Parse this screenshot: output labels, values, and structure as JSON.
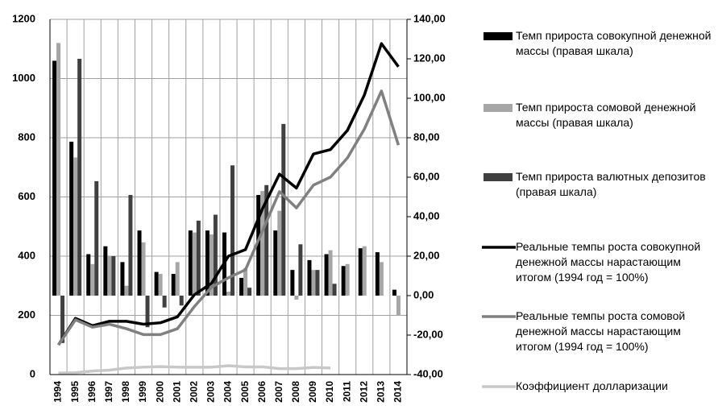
{
  "chart_data": {
    "type": "bar",
    "categories": [
      "1994",
      "1995",
      "1996",
      "1997",
      "1998",
      "1999",
      "2000",
      "2001",
      "2002",
      "2003",
      "2004",
      "2005",
      "2006",
      "2007",
      "2008",
      "2009",
      "2010",
      "2011",
      "2012",
      "2013",
      "2014"
    ],
    "ylim": [
      0,
      1200
    ],
    "yticks": [
      0,
      200,
      400,
      600,
      800,
      1000,
      1200
    ],
    "y2lim": [
      -40,
      140
    ],
    "y2ticks": [
      {
        "value": -40,
        "label": "-40,00"
      },
      {
        "value": -20,
        "label": "-20,00"
      },
      {
        "value": 0,
        "label": "0,00"
      },
      {
        "value": 20,
        "label": "20,00"
      },
      {
        "value": 40,
        "label": "40,00"
      },
      {
        "value": 60,
        "label": "60,00"
      },
      {
        "value": 80,
        "label": "80,00"
      },
      {
        "value": 100,
        "label": "100,00"
      },
      {
        "value": 120,
        "label": "120,00"
      },
      {
        "value": 140,
        "label": "140,00"
      }
    ],
    "grid": true,
    "series": [
      {
        "name": "Темп прироста совокупной денежной массы (правая шкала)",
        "type": "bar",
        "axis": "y2",
        "color": "#000000",
        "values": [
          119,
          78,
          21,
          25,
          17,
          33,
          12,
          11,
          33,
          33,
          32,
          9,
          51,
          33,
          13,
          18,
          21,
          15,
          24,
          22,
          3
        ]
      },
      {
        "name": "Темп прироста сомовой денежной массы (правая шкала)",
        "type": "bar",
        "axis": "y2",
        "color": "#a6a6a6",
        "values": [
          128,
          70,
          16,
          20,
          5,
          27,
          11,
          17,
          32,
          31,
          2,
          14,
          53,
          43,
          -2,
          13,
          23,
          16,
          25,
          17,
          -10
        ]
      },
      {
        "name": "Темп прироста валютных депозитов (правая шкала)",
        "type": "bar",
        "axis": "y2",
        "color": "#404040",
        "values": [
          -24,
          120,
          58,
          20,
          51,
          -16,
          -6,
          -5,
          38,
          41,
          66,
          4,
          56,
          87,
          26,
          13,
          6,
          null,
          null,
          null,
          null
        ]
      },
      {
        "name": "Реальные темпы роста совокупной денежной массы нарастающим итогом (1994 год = 100%)",
        "type": "line",
        "color": "#000000",
        "values": [
          100,
          190,
          165,
          180,
          180,
          170,
          175,
          195,
          270,
          308,
          400,
          422,
          560,
          677,
          630,
          745,
          760,
          825,
          945,
          1118,
          1040
        ]
      },
      {
        "name": "Реальные темпы роста сомовой денежной массы нарастающим итогом (1994 год = 100%)",
        "type": "line",
        "color": "#808080",
        "values": [
          100,
          185,
          160,
          170,
          155,
          135,
          135,
          155,
          230,
          295,
          327,
          354,
          485,
          618,
          563,
          640,
          667,
          732,
          830,
          958,
          775
        ]
      },
      {
        "name": "Коэффициент долларизации",
        "type": "line",
        "color": "#c8c8c8",
        "values": [
          5,
          6,
          12,
          15,
          22,
          25,
          27,
          25,
          25,
          25,
          30,
          26,
          26,
          20,
          20,
          24,
          22,
          null,
          null,
          null,
          null
        ]
      }
    ]
  }
}
